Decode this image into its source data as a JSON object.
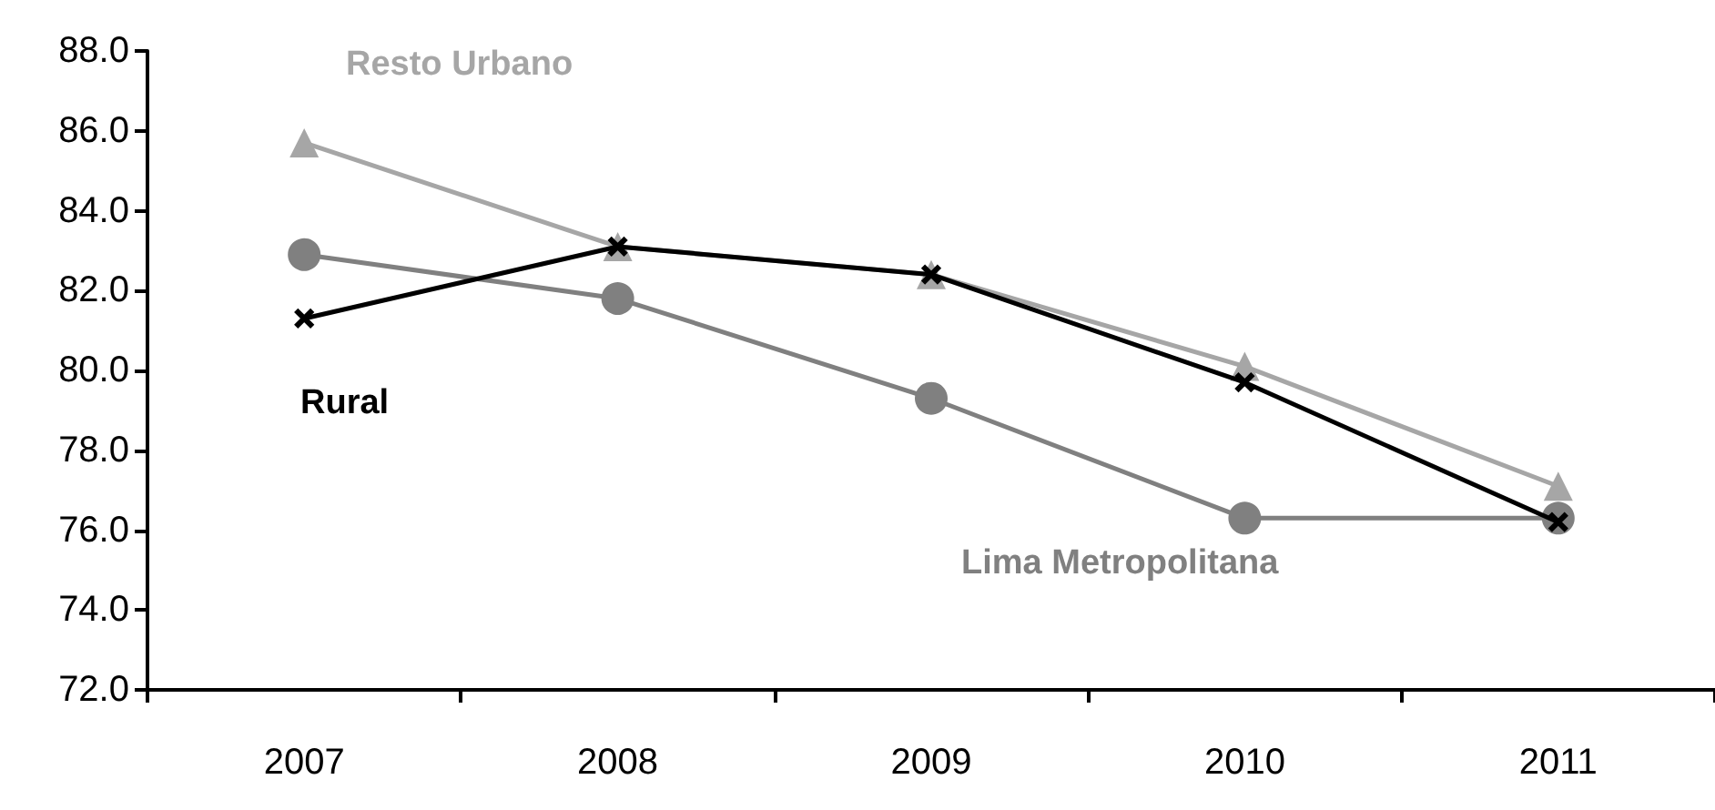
{
  "chart_data": {
    "type": "line",
    "categories": [
      "2007",
      "2008",
      "2009",
      "2010",
      "2011"
    ],
    "series": [
      {
        "name": "Resto Urbano",
        "color": "#a6a6a6",
        "marker": "triangle",
        "values": [
          85.7,
          83.1,
          82.4,
          80.1,
          77.1
        ]
      },
      {
        "name": "Lima Metropolitana",
        "color": "#808080",
        "marker": "circle",
        "values": [
          82.9,
          81.8,
          79.3,
          76.3,
          76.3
        ]
      },
      {
        "name": "Rural",
        "color": "#000000",
        "marker": "cross",
        "values": [
          81.3,
          83.1,
          82.4,
          79.7,
          76.2
        ]
      }
    ],
    "ylim": [
      72,
      88
    ],
    "yticks": [
      {
        "value": 72,
        "label": "72.0"
      },
      {
        "value": 74,
        "label": "74.0"
      },
      {
        "value": 76,
        "label": "76.0"
      },
      {
        "value": 78,
        "label": "78.0"
      },
      {
        "value": 80,
        "label": "80.0"
      },
      {
        "value": 82,
        "label": "82.0"
      },
      {
        "value": 84,
        "label": "84.0"
      },
      {
        "value": 86,
        "label": "86.0"
      },
      {
        "value": 88,
        "label": "88.0"
      }
    ],
    "grid": false,
    "legend": false
  }
}
